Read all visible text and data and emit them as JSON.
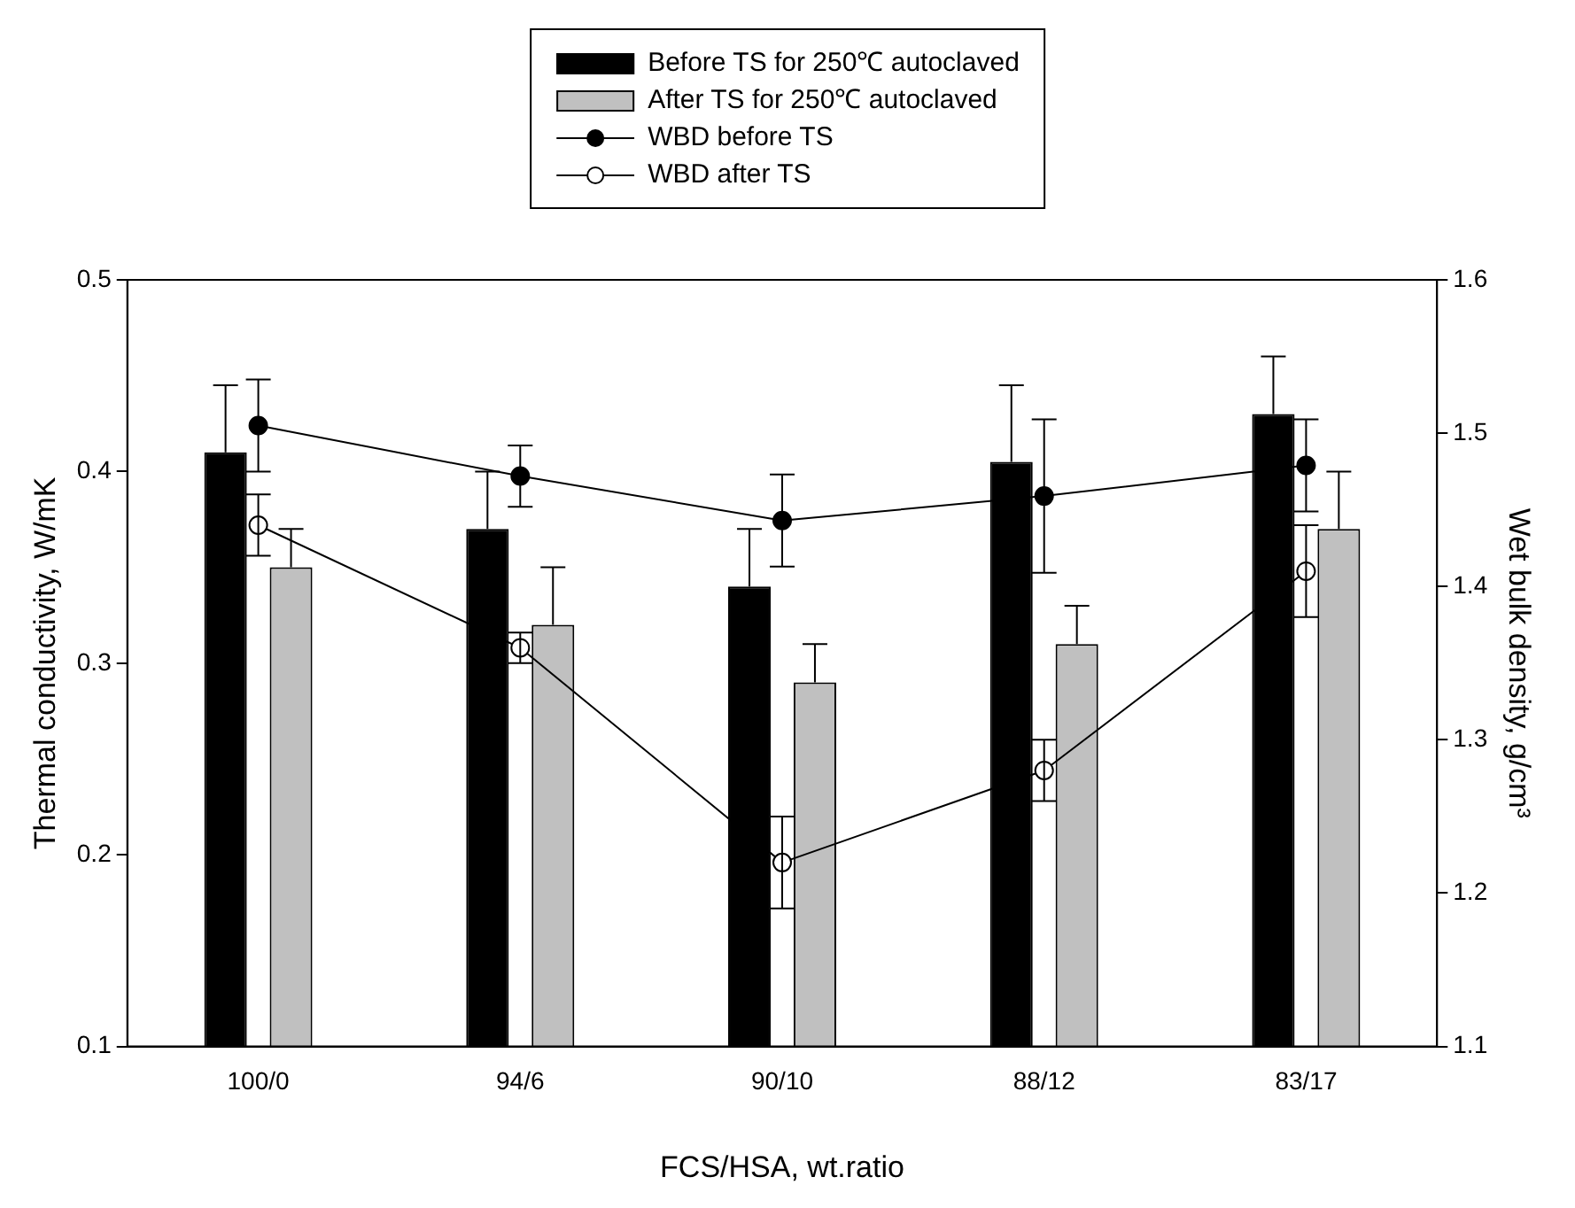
{
  "chart_data": {
    "type": "bar",
    "xlabel": "FCS/HSA, wt.ratio",
    "ylabel": "Thermal conductivity, W/mK",
    "y2label": "Wet bulk density, g/cm³",
    "categories": [
      "100/0",
      "94/6",
      "90/10",
      "88/12",
      "83/17"
    ],
    "series": [
      {
        "name": "Before TS for 250℃ autoclaved",
        "color": "#000000",
        "values": [
          0.41,
          0.37,
          0.34,
          0.405,
          0.43
        ],
        "errors": [
          [
            0.41,
            0.445
          ],
          [
            0.37,
            0.4
          ],
          [
            0.34,
            0.37
          ],
          [
            0.405,
            0.445
          ],
          [
            0.43,
            0.46
          ]
        ]
      },
      {
        "name": "After TS for 250℃ autoclaved",
        "color": "#c0c0c0",
        "values": [
          0.35,
          0.32,
          0.29,
          0.31,
          0.37
        ],
        "errors": [
          [
            0.35,
            0.37
          ],
          [
            0.32,
            0.35
          ],
          [
            0.29,
            0.31
          ],
          [
            0.31,
            0.33
          ],
          [
            0.37,
            0.4
          ]
        ]
      },
      {
        "name": "WBD before TS",
        "type": "line",
        "axis": "y2",
        "color": "#000000",
        "values": [
          1.505,
          1.472,
          1.443,
          1.459,
          1.479
        ],
        "errors": [
          0.03,
          0.02,
          0.03,
          0.05,
          0.03
        ]
      },
      {
        "name": "WBD after TS",
        "type": "line",
        "axis": "y2",
        "color": "#000000",
        "values": [
          1.44,
          1.36,
          1.22,
          1.28,
          1.41
        ],
        "errors": [
          0.02,
          0.01,
          0.03,
          0.02,
          0.03
        ]
      }
    ],
    "ylim": [
      0.1,
      0.5
    ],
    "yticks": [
      0.1,
      0.2,
      0.3,
      0.4,
      0.5
    ],
    "y2lim": [
      1.1,
      1.6
    ],
    "y2ticks": [
      1.1,
      1.2,
      1.3,
      1.4,
      1.5,
      1.6
    ],
    "grid": false,
    "legend": "top",
    "marker": "circle",
    "line_style": "solid"
  }
}
